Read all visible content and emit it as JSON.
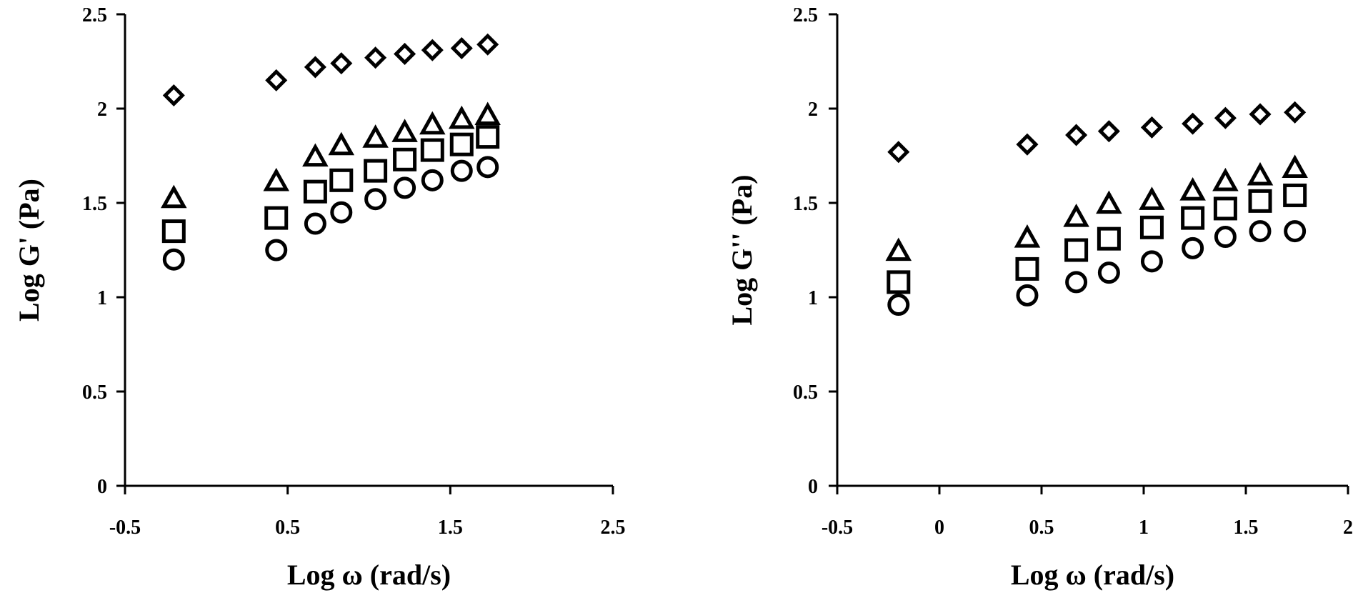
{
  "chart_data": [
    {
      "type": "scatter",
      "panel": "left",
      "xlabel": "Log ω (rad/s)",
      "ylabel": "Log G' (Pa)",
      "xlim": [
        -0.5,
        2.5
      ],
      "ylim": [
        0,
        2.5
      ],
      "x_ticks": [
        -0.5,
        0.5,
        1.5,
        2.5
      ],
      "x_tick_labels": [
        "-0.5",
        "0.5",
        "1.5",
        "2.5"
      ],
      "y_ticks": [
        0,
        0.5,
        1,
        1.5,
        2,
        2.5
      ],
      "y_tick_labels": [
        "0",
        "0.5",
        "1",
        "1.5",
        "2",
        "2.5"
      ],
      "grid": false,
      "legend": "none",
      "x": [
        -0.2,
        0.43,
        0.67,
        0.83,
        1.04,
        1.22,
        1.39,
        1.57,
        1.73
      ],
      "series": [
        {
          "marker": "diamond",
          "values": [
            2.07,
            2.15,
            2.22,
            2.24,
            2.27,
            2.29,
            2.31,
            2.32,
            2.34
          ]
        },
        {
          "marker": "triangle",
          "values": [
            1.52,
            1.61,
            1.74,
            1.8,
            1.84,
            1.87,
            1.91,
            1.94,
            1.96
          ]
        },
        {
          "marker": "square",
          "values": [
            1.35,
            1.42,
            1.56,
            1.62,
            1.67,
            1.73,
            1.78,
            1.81,
            1.85
          ]
        },
        {
          "marker": "circle",
          "values": [
            1.2,
            1.25,
            1.39,
            1.45,
            1.52,
            1.58,
            1.62,
            1.67,
            1.69
          ]
        }
      ]
    },
    {
      "type": "scatter",
      "panel": "right",
      "xlabel": "Log ω (rad/s)",
      "ylabel": "Log G'' (Pa)",
      "xlim": [
        -0.5,
        2
      ],
      "ylim": [
        0,
        2.5
      ],
      "x_ticks": [
        -0.5,
        0,
        0.5,
        1,
        1.5,
        2
      ],
      "x_tick_labels": [
        "-0.5",
        "0",
        "0.5",
        "1",
        "1.5",
        "2"
      ],
      "y_ticks": [
        0,
        0.5,
        1,
        1.5,
        2,
        2.5
      ],
      "y_tick_labels": [
        "0",
        "0.5",
        "1",
        "1.5",
        "2",
        "2.5"
      ],
      "grid": false,
      "legend": "none",
      "x": [
        -0.2,
        0.43,
        0.67,
        0.83,
        1.04,
        1.24,
        1.4,
        1.57,
        1.74
      ],
      "series": [
        {
          "marker": "diamond",
          "values": [
            1.77,
            1.81,
            1.86,
            1.88,
            1.9,
            1.92,
            1.95,
            1.97,
            1.98
          ]
        },
        {
          "marker": "triangle",
          "values": [
            1.24,
            1.31,
            1.42,
            1.49,
            1.51,
            1.56,
            1.61,
            1.64,
            1.68
          ]
        },
        {
          "marker": "square",
          "values": [
            1.08,
            1.15,
            1.25,
            1.31,
            1.37,
            1.42,
            1.47,
            1.51,
            1.54
          ]
        },
        {
          "marker": "circle",
          "values": [
            0.96,
            1.01,
            1.08,
            1.13,
            1.19,
            1.26,
            1.32,
            1.35,
            1.35
          ]
        }
      ]
    }
  ]
}
